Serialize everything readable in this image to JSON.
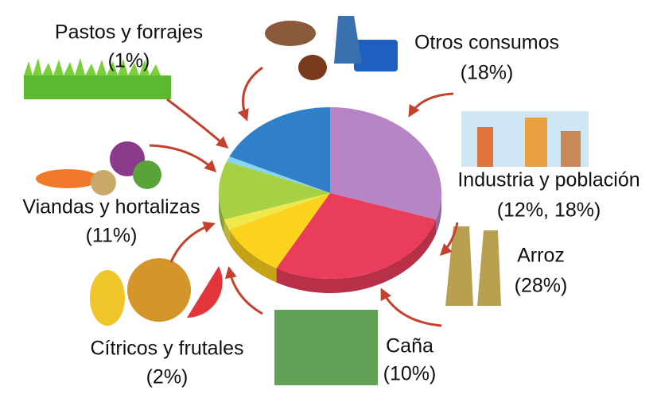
{
  "chart_data": {
    "type": "pie",
    "categories": [
      "Industria y población",
      "Arroz",
      "Caña",
      "Cítricos y frutales",
      "Viandas y hortalizas",
      "Pastos y forrajes",
      "Otros consumos"
    ],
    "values": [
      30,
      28,
      10,
      2,
      11,
      1,
      18
    ],
    "value_labels": [
      "(12%, 18%)",
      "(28%)",
      "(10%)",
      "(2%)",
      "(11%)",
      "(1%)",
      "(18%)"
    ],
    "colors": [
      "#b784c6",
      "#ea3d5c",
      "#fbd21c",
      "#eee84a",
      "#a8d044",
      "#86d6f2",
      "#2f80c8"
    ]
  }
}
